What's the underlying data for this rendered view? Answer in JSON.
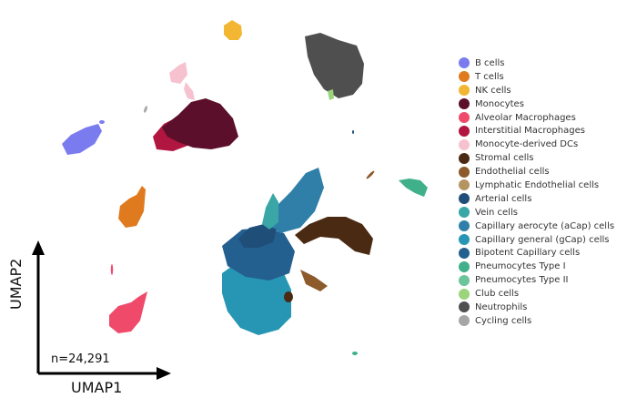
{
  "chart_data": {
    "type": "scatter",
    "title": "",
    "xlabel": "UMAP1",
    "ylabel": "UMAP2",
    "annotations": [
      "n=24,291"
    ],
    "legend_position": "right",
    "grid": false,
    "series": [
      {
        "name": "B cells",
        "color": "#7b7bf0"
      },
      {
        "name": "T cells",
        "color": "#e07a1f"
      },
      {
        "name": "NK cells",
        "color": "#f2b632"
      },
      {
        "name": "Monocytes",
        "color": "#5c0f2a"
      },
      {
        "name": "Alveolar Macrophages",
        "color": "#f04a6a"
      },
      {
        "name": "Interstitial Macrophages",
        "color": "#b0163f"
      },
      {
        "name": "Monocyte-derived DCs",
        "color": "#f6c2cf"
      },
      {
        "name": "Stromal cells",
        "color": "#4a2a12"
      },
      {
        "name": "Endothelial cells",
        "color": "#8c5a2b"
      },
      {
        "name": "Lymphatic Endothelial cells",
        "color": "#b59462"
      },
      {
        "name": "Arterial cells",
        "color": "#1f4e79"
      },
      {
        "name": "Vein cells",
        "color": "#3aa6a6"
      },
      {
        "name": "Capillary aerocyte (aCap) cells",
        "color": "#2f7fa8"
      },
      {
        "name": "Capillary general (gCap) cells",
        "color": "#2796b4"
      },
      {
        "name": "Bipotent Capillary cells",
        "color": "#235f8f"
      },
      {
        "name": "Pneumocytes Type I",
        "color": "#3fb08a"
      },
      {
        "name": "Pneumocytes Type II",
        "color": "#6cc49a"
      },
      {
        "name": "Club cells",
        "color": "#9bd47a"
      },
      {
        "name": "Neutrophils",
        "color": "#4f4f4f"
      },
      {
        "name": "Cycling cells",
        "color": "#a6a6a6"
      }
    ]
  }
}
